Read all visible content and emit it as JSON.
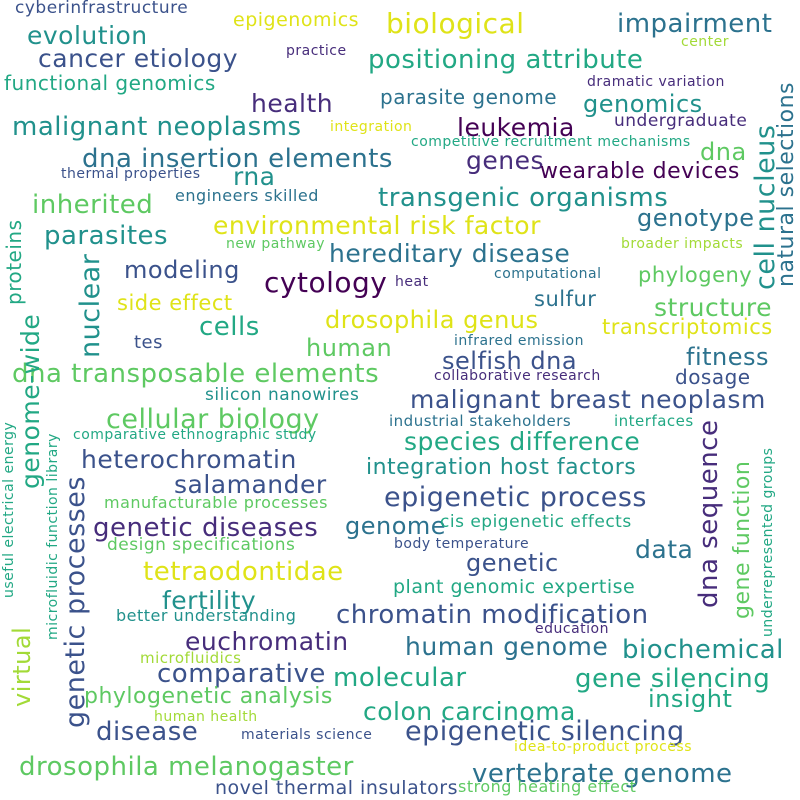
{
  "palette": {
    "yellow": "#dfe318",
    "lime": "#a2da37",
    "green": "#5ec962",
    "teal": "#22a884",
    "cyan": "#21918c",
    "blue": "#2c728e",
    "indigo": "#3b528b",
    "purple": "#472d7b",
    "violet": "#440154"
  },
  "words": [
    {
      "text": "cyberinfrastructure",
      "color": "indigo"
    },
    {
      "text": "epigenomics",
      "color": "yellow"
    },
    {
      "text": "biological",
      "color": "yellow"
    },
    {
      "text": "impairment",
      "color": "blue"
    },
    {
      "text": "evolution",
      "color": "cyan"
    },
    {
      "text": "practice",
      "color": "purple"
    },
    {
      "text": "center",
      "color": "lime"
    },
    {
      "text": "cancer etiology",
      "color": "indigo"
    },
    {
      "text": "positioning attribute",
      "color": "teal"
    },
    {
      "text": "functional genomics",
      "color": "teal"
    },
    {
      "text": "dramatic variation",
      "color": "purple"
    },
    {
      "text": "health",
      "color": "purple"
    },
    {
      "text": "parasite genome",
      "color": "blue"
    },
    {
      "text": "genomics",
      "color": "cyan"
    },
    {
      "text": "malignant neoplasms",
      "color": "cyan"
    },
    {
      "text": "integration",
      "color": "yellow"
    },
    {
      "text": "leukemia",
      "color": "violet"
    },
    {
      "text": "undergraduate",
      "color": "purple"
    },
    {
      "text": "competitive recruitment mechanisms",
      "color": "teal"
    },
    {
      "text": "dna",
      "color": "green"
    },
    {
      "text": "dna insertion elements",
      "color": "blue"
    },
    {
      "text": "genes",
      "color": "purple"
    },
    {
      "text": "wearable devices",
      "color": "violet"
    },
    {
      "text": "thermal properties",
      "color": "indigo"
    },
    {
      "text": "rna",
      "color": "cyan"
    },
    {
      "text": "engineers skilled",
      "color": "blue"
    },
    {
      "text": "inherited",
      "color": "green"
    },
    {
      "text": "transgenic organisms",
      "color": "cyan"
    },
    {
      "text": "genotype",
      "color": "blue"
    },
    {
      "text": "environmental risk factor",
      "color": "yellow"
    },
    {
      "text": "parasites",
      "color": "cyan"
    },
    {
      "text": "new pathway",
      "color": "green"
    },
    {
      "text": "hereditary disease",
      "color": "blue"
    },
    {
      "text": "broader impacts",
      "color": "lime"
    },
    {
      "text": "modeling",
      "color": "indigo"
    },
    {
      "text": "computational",
      "color": "blue"
    },
    {
      "text": "phylogeny",
      "color": "green"
    },
    {
      "text": "cytology",
      "color": "violet"
    },
    {
      "text": "heat",
      "color": "purple"
    },
    {
      "text": "side effect",
      "color": "yellow"
    },
    {
      "text": "sulfur",
      "color": "blue"
    },
    {
      "text": "structure",
      "color": "green"
    },
    {
      "text": "cells",
      "color": "teal"
    },
    {
      "text": "drosophila genus",
      "color": "yellow"
    },
    {
      "text": "transcriptomics",
      "color": "yellow"
    },
    {
      "text": "tes",
      "color": "indigo"
    },
    {
      "text": "human",
      "color": "green"
    },
    {
      "text": "infrared emission",
      "color": "blue"
    },
    {
      "text": "selfish dna",
      "color": "indigo"
    },
    {
      "text": "fitness",
      "color": "blue"
    },
    {
      "text": "dna transposable elements",
      "color": "green"
    },
    {
      "text": "collaborative research",
      "color": "purple"
    },
    {
      "text": "dosage",
      "color": "indigo"
    },
    {
      "text": "silicon nanowires",
      "color": "cyan"
    },
    {
      "text": "malignant breast neoplasm",
      "color": "indigo"
    },
    {
      "text": "cellular biology",
      "color": "green"
    },
    {
      "text": "industrial stakeholders",
      "color": "blue"
    },
    {
      "text": "interfaces",
      "color": "teal"
    },
    {
      "text": "comparative ethnographic study",
      "color": "teal"
    },
    {
      "text": "species difference",
      "color": "teal"
    },
    {
      "text": "heterochromatin",
      "color": "indigo"
    },
    {
      "text": "integration host factors",
      "color": "cyan"
    },
    {
      "text": "salamander",
      "color": "indigo"
    },
    {
      "text": "epigenetic process",
      "color": "indigo"
    },
    {
      "text": "manufacturable processes",
      "color": "green"
    },
    {
      "text": "genetic diseases",
      "color": "purple"
    },
    {
      "text": "genome",
      "color": "blue"
    },
    {
      "text": "cis epigenetic effects",
      "color": "teal"
    },
    {
      "text": "design specifications",
      "color": "green"
    },
    {
      "text": "body temperature",
      "color": "indigo"
    },
    {
      "text": "data",
      "color": "blue"
    },
    {
      "text": "genetic",
      "color": "indigo"
    },
    {
      "text": "tetraodontidae",
      "color": "yellow"
    },
    {
      "text": "plant genomic expertise",
      "color": "teal"
    },
    {
      "text": "fertility",
      "color": "cyan"
    },
    {
      "text": "chromatin modification",
      "color": "indigo"
    },
    {
      "text": "better understanding",
      "color": "cyan"
    },
    {
      "text": "education",
      "color": "purple"
    },
    {
      "text": "euchromatin",
      "color": "purple"
    },
    {
      "text": "human genome",
      "color": "blue"
    },
    {
      "text": "biochemical",
      "color": "cyan"
    },
    {
      "text": "microfluidics",
      "color": "lime"
    },
    {
      "text": "comparative",
      "color": "indigo"
    },
    {
      "text": "molecular",
      "color": "teal"
    },
    {
      "text": "gene silencing",
      "color": "teal"
    },
    {
      "text": "phylogenetic analysis",
      "color": "green"
    },
    {
      "text": "insight",
      "color": "teal"
    },
    {
      "text": "human health",
      "color": "lime"
    },
    {
      "text": "colon carcinoma",
      "color": "teal"
    },
    {
      "text": "disease",
      "color": "indigo"
    },
    {
      "text": "materials science",
      "color": "indigo"
    },
    {
      "text": "epigenetic silencing",
      "color": "indigo"
    },
    {
      "text": "idea-to-product process",
      "color": "yellow"
    },
    {
      "text": "drosophila melanogaster",
      "color": "green"
    },
    {
      "text": "vertebrate genome",
      "color": "blue"
    },
    {
      "text": "novel thermal insulators",
      "color": "indigo"
    },
    {
      "text": "strong heating effect",
      "color": "green"
    },
    {
      "text": "cell nucleus",
      "color": "cyan"
    },
    {
      "text": "natural selections",
      "color": "blue"
    },
    {
      "text": "proteins",
      "color": "teal"
    },
    {
      "text": "nuclear",
      "color": "cyan"
    },
    {
      "text": "genome-wide",
      "color": "teal"
    },
    {
      "text": "genetic processes",
      "color": "indigo"
    },
    {
      "text": "useful electrical energy",
      "color": "teal"
    },
    {
      "text": "microfluidic function library",
      "color": "teal"
    },
    {
      "text": "virtual",
      "color": "lime"
    },
    {
      "text": "dna sequence",
      "color": "purple"
    },
    {
      "text": "gene function",
      "color": "green"
    },
    {
      "text": "underrepresented groups",
      "color": "teal"
    }
  ]
}
